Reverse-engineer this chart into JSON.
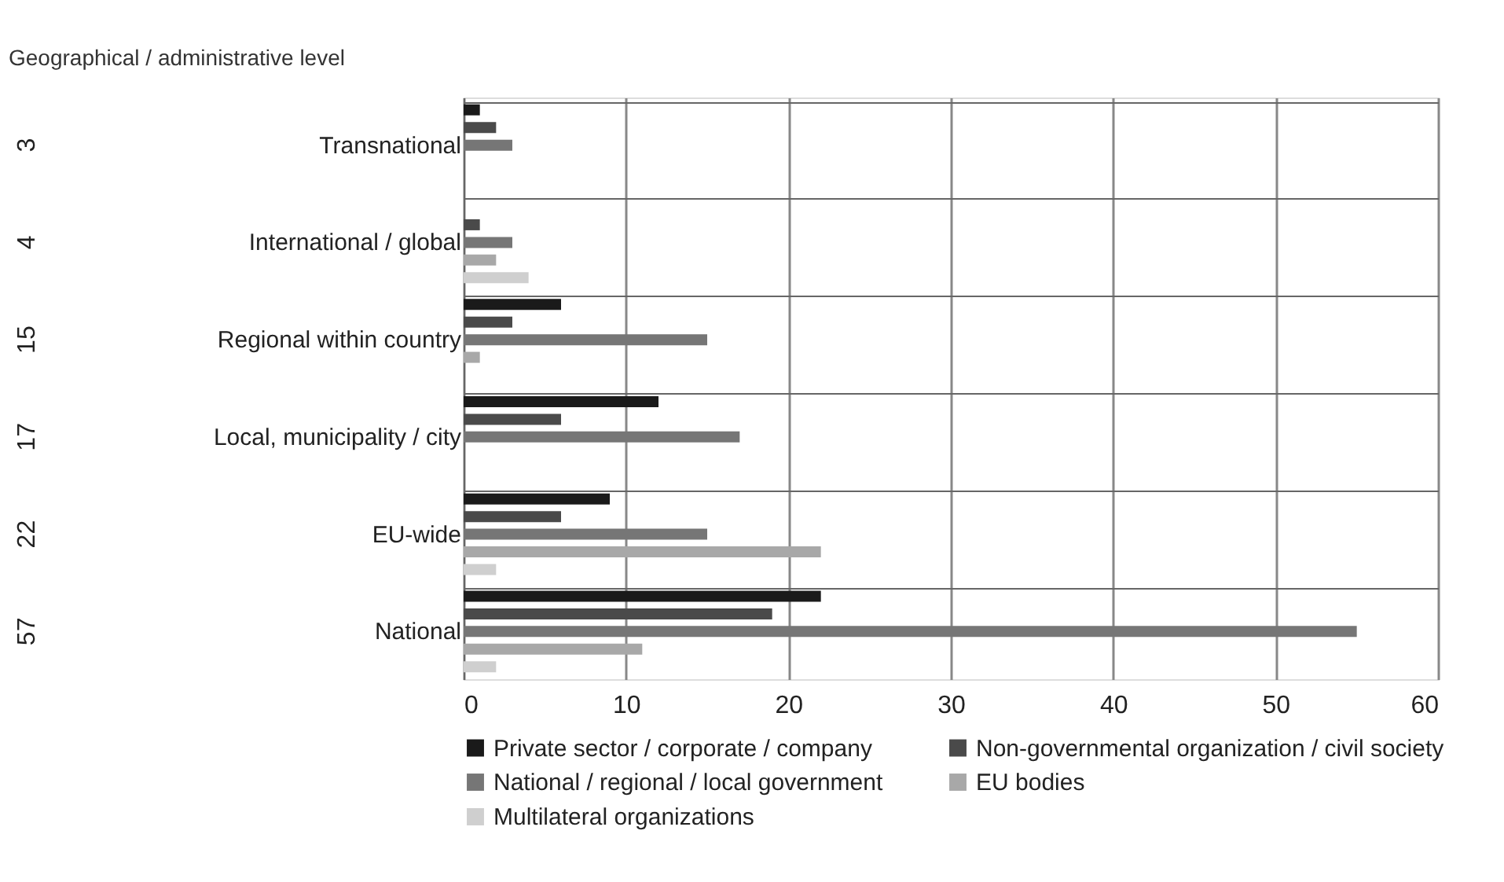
{
  "chart_data": {
    "type": "bar",
    "orientation": "horizontal",
    "ylabel": "Geographical / administrative level",
    "categories": [
      "Transnational",
      "International / global",
      "Regional within country",
      "Local, municipality / city",
      "EU-wide",
      "National"
    ],
    "series": [
      {
        "name": "Private sector / corporate / company",
        "color": "#1a1a1a",
        "values": [
          1,
          null,
          6,
          12,
          9,
          22
        ]
      },
      {
        "name": "Non-governmental organization / civil society",
        "color": "#4a4a4a",
        "values": [
          2,
          1,
          3,
          6,
          6,
          19
        ]
      },
      {
        "name": "National / regional / local government",
        "color": "#767676",
        "values": [
          3,
          3,
          15,
          17,
          15,
          55
        ]
      },
      {
        "name": "EU bodies",
        "color": "#a8a8a8",
        "values": [
          null,
          2,
          1,
          null,
          22,
          11
        ]
      },
      {
        "name": "Multilateral organizations",
        "color": "#cfcfcf",
        "values": [
          null,
          4,
          null,
          null,
          2,
          2
        ]
      }
    ],
    "annotations": [
      "3",
      "4",
      "15",
      "17",
      "22",
      "57"
    ],
    "xlim": [
      0,
      60
    ],
    "xticks": [
      0,
      10,
      20,
      30,
      40,
      50,
      60
    ],
    "grid": "x",
    "legend": "bottom"
  }
}
